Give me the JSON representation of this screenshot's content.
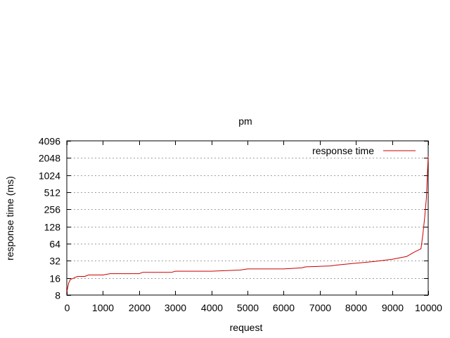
{
  "chart_data": {
    "type": "line",
    "title": "pm",
    "xlabel": "request",
    "ylabel": "response time (ms)",
    "xlim": [
      0,
      10000
    ],
    "ylim": [
      8,
      4096
    ],
    "yscale": "log2",
    "grid": "horizontal dotted",
    "legend_position": "top-right",
    "x_ticks": [
      0,
      1000,
      2000,
      3000,
      4000,
      5000,
      6000,
      7000,
      8000,
      9000,
      10000
    ],
    "y_ticks": [
      8,
      16,
      32,
      64,
      128,
      256,
      512,
      1024,
      2048,
      4096
    ],
    "series": [
      {
        "name": "response time",
        "color": "#cc0000",
        "x": [
          0,
          50,
          100,
          200,
          300,
          400,
          500,
          600,
          700,
          1000,
          1200,
          1300,
          2000,
          2100,
          2900,
          3000,
          3900,
          4000,
          4800,
          5000,
          6000,
          6500,
          6600,
          7300,
          7500,
          8000,
          8500,
          9000,
          9400,
          9600,
          9800,
          9850,
          9900,
          9950,
          9980,
          10000
        ],
        "y": [
          9,
          13,
          15,
          16,
          17,
          17,
          17,
          18,
          18,
          18,
          19,
          19,
          19,
          20,
          20,
          21,
          21,
          21,
          22,
          23,
          23,
          24,
          25,
          26,
          27,
          29,
          31,
          34,
          38,
          45,
          52,
          90,
          180,
          400,
          1200,
          2200
        ]
      }
    ]
  }
}
